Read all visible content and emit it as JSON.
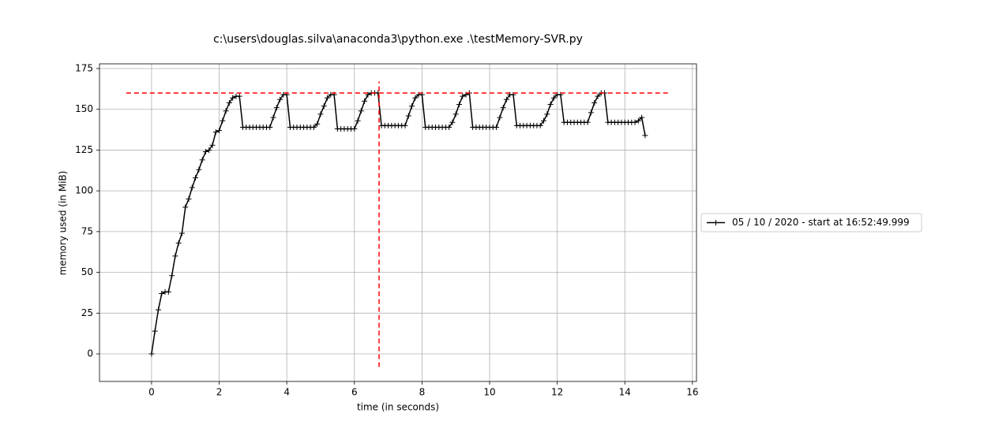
{
  "chart_data": {
    "type": "line",
    "title": "c:\\users\\douglas.silva\\anaconda3\\python.exe .\\testMemory-SVR.py",
    "x_label": "time (in seconds)",
    "y_label": "memory used (in MiB)",
    "x": [
      0,
      0.1,
      0.2,
      0.3,
      0.4,
      0.5,
      0.6,
      0.7,
      0.8,
      0.9,
      1,
      1.1,
      1.2,
      1.3,
      1.4,
      1.5,
      1.6,
      1.7,
      1.8,
      1.9,
      2,
      2.1,
      2.2,
      2.3,
      2.4,
      2.5,
      2.6,
      2.7,
      2.8,
      2.9,
      3,
      3.1,
      3.2,
      3.3,
      3.4,
      3.5,
      3.6,
      3.7,
      3.8,
      3.9,
      4,
      4.1,
      4.2,
      4.3,
      4.4,
      4.5,
      4.6,
      4.7,
      4.8,
      4.9,
      5,
      5.1,
      5.2,
      5.3,
      5.4,
      5.5,
      5.6,
      5.7,
      5.8,
      5.9,
      6,
      6.1,
      6.2,
      6.3,
      6.4,
      6.5,
      6.6,
      6.7,
      6.8,
      6.9,
      7,
      7.1,
      7.2,
      7.3,
      7.4,
      7.5,
      7.6,
      7.7,
      7.8,
      7.9,
      8,
      8.1,
      8.2,
      8.3,
      8.4,
      8.5,
      8.6,
      8.7,
      8.8,
      8.9,
      9,
      9.1,
      9.2,
      9.3,
      9.4,
      9.5,
      9.6,
      9.7,
      9.8,
      9.9,
      10,
      10.1,
      10.2,
      10.3,
      10.4,
      10.5,
      10.6,
      10.7,
      10.8,
      10.9,
      11,
      11.1,
      11.2,
      11.3,
      11.4,
      11.5,
      11.6,
      11.7,
      11.8,
      11.9,
      12,
      12.1,
      12.2,
      12.3,
      12.4,
      12.5,
      12.6,
      12.7,
      12.8,
      12.9,
      13,
      13.1,
      13.2,
      13.3,
      13.4,
      13.5,
      13.6,
      13.7,
      13.8,
      13.9,
      14,
      14.1,
      14.2,
      14.3,
      14.4,
      14.5,
      14.6
    ],
    "series": [
      {
        "name": "05 / 10 / 2020 - start at 16:52:49.999",
        "color": "#000000",
        "values": [
          0,
          14,
          27,
          37,
          38,
          38,
          48,
          60,
          68,
          74,
          90,
          95,
          102,
          108,
          113,
          119,
          124,
          125,
          128,
          136,
          137,
          143,
          149,
          154,
          157,
          158,
          158,
          139,
          139,
          139,
          139,
          139,
          139,
          139,
          139,
          139,
          145,
          151,
          156,
          159,
          159,
          139,
          139,
          139,
          139,
          139,
          139,
          139,
          139,
          141,
          147,
          152,
          157,
          159,
          159,
          138,
          138,
          138,
          138,
          138,
          138,
          143,
          149,
          155,
          159,
          160,
          160,
          160,
          140,
          140,
          140,
          140,
          140,
          140,
          140,
          140,
          146,
          152,
          157,
          159,
          159,
          139,
          139,
          139,
          139,
          139,
          139,
          139,
          139,
          142,
          147,
          153,
          158,
          159,
          160,
          139,
          139,
          139,
          139,
          139,
          139,
          139,
          139,
          145,
          151,
          156,
          159,
          159,
          140,
          140,
          140,
          140,
          140,
          140,
          140,
          140,
          143,
          147,
          153,
          157,
          159,
          159,
          142,
          142,
          142,
          142,
          142,
          142,
          142,
          142,
          148,
          154,
          158,
          160,
          160,
          142,
          142,
          142,
          142,
          142,
          142,
          142,
          142,
          142,
          143,
          145,
          134
        ]
      }
    ],
    "reference_lines": [
      {
        "orientation": "horizontal",
        "y": 160,
        "x_range": [
          -0.75,
          15.3
        ],
        "color": "#ff0000"
      },
      {
        "orientation": "vertical",
        "x": 6.73,
        "y_range": [
          -8,
          167
        ],
        "color": "#ff0000"
      }
    ],
    "xlim": [
      -1.54,
      16.12
    ],
    "ylim": [
      -16.9,
      177.9
    ],
    "xticks": [
      0,
      2,
      4,
      6,
      8,
      10,
      12,
      14,
      16
    ],
    "yticks": [
      0,
      25,
      50,
      75,
      100,
      125,
      150,
      175
    ],
    "grid": true,
    "legend": "center right outside"
  }
}
